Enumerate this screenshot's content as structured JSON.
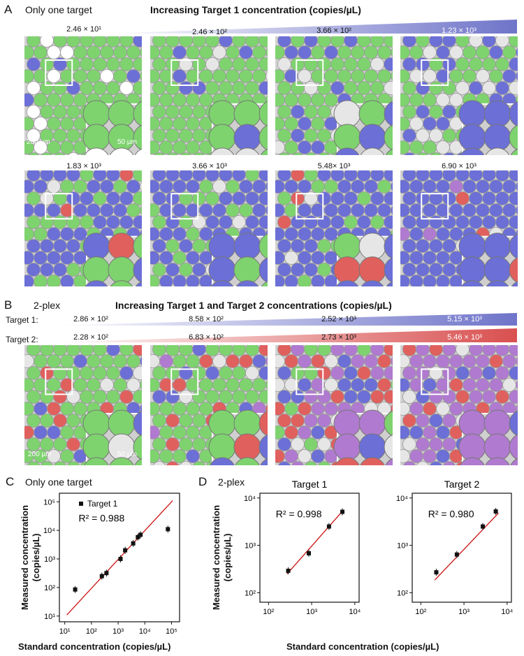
{
  "panelA": {
    "letter": "A",
    "subtitle": "Only one target",
    "title": "Increasing Target 1 concentration (copies/µL)",
    "row1": [
      "2.46 × 10¹",
      "2.46 × 10²",
      "3.66 × 10²",
      "1.23 × 10³"
    ],
    "row2": [
      "1.83 × 10³",
      "3.66 × 10³",
      "5.48× 10³",
      "6.90 × 10³"
    ],
    "scale_big": "200 µm",
    "scale_small": "50 µm"
  },
  "panelB": {
    "letter": "B",
    "subtitle": "2-plex",
    "title": "Increasing Target 1 and Target 2 concentrations (copies/µL)",
    "t1_label": "Target 1:",
    "t2_label": "Target 2:",
    "t1_values": [
      "2.86 × 10²",
      "8.58 × 10²",
      "2.52 × 10³",
      "5.15 × 10³"
    ],
    "t2_values": [
      "2.28 × 10²",
      "6.83 × 10²",
      "2.73 × 10³",
      "5.46 × 10³"
    ],
    "scale_big": "200 µm",
    "scale_small": "50 µm"
  },
  "panelC": {
    "letter": "C",
    "subtitle": "Only one target"
  },
  "panelD": {
    "letter": "D",
    "subtitle": "2-plex"
  },
  "colors": {
    "green": "#7ed36e",
    "blue": "#6b6fd6",
    "red": "#e0605e",
    "purple": "#b07ad0",
    "fit": "#cc1111"
  },
  "chart_data": [
    {
      "type": "scatter",
      "title": "",
      "legend": "Target 1",
      "r2": "R² = 0.988",
      "xlabel": "Standard concentration (copies/µL)",
      "ylabel": "Measured concentration (copies/µL)",
      "xlim_log10": [
        0.8,
        5.3
      ],
      "ylim_log10": [
        0.8,
        5.3
      ],
      "xticks": [
        "10¹",
        "10²",
        "10³",
        "10⁴",
        "10⁵"
      ],
      "yticks": [
        "10¹",
        "10²",
        "10³",
        "10⁴",
        "10⁵"
      ],
      "x": [
        24.6,
        246,
        366,
        1230,
        1830,
        3660,
        5480,
        6900,
        73000
      ],
      "y": [
        85,
        250,
        320,
        1000,
        2000,
        3500,
        5800,
        7000,
        11000
      ],
      "fit": [
        [
          12,
          11
        ],
        [
          110000,
          110000
        ]
      ]
    },
    {
      "type": "scatter",
      "title": "Target 1",
      "r2": "R² = 0.998",
      "xlim_log10": [
        1.8,
        4.1
      ],
      "ylim_log10": [
        1.8,
        4.1
      ],
      "xticks": [
        "10²",
        "10³",
        "10⁴"
      ],
      "yticks": [
        "10²",
        "10³",
        "10⁴"
      ],
      "x": [
        286,
        858,
        2520,
        5150
      ],
      "y": [
        290,
        680,
        2500,
        5100
      ],
      "fit": [
        [
          270,
          250
        ],
        [
          5500,
          5600
        ]
      ]
    },
    {
      "type": "scatter",
      "title": "Target 2",
      "r2": "R² = 0.980",
      "xlim_log10": [
        1.8,
        4.1
      ],
      "ylim_log10": [
        1.8,
        4.1
      ],
      "xticks": [
        "10²",
        "10³",
        "10⁴"
      ],
      "yticks": [
        "10²",
        "10³",
        "10⁴"
      ],
      "x": [
        228,
        683,
        2730,
        5460
      ],
      "y": [
        270,
        640,
        2500,
        5200
      ],
      "fit": [
        [
          210,
          185
        ],
        [
          6300,
          4800
        ]
      ]
    }
  ],
  "axis_labels": {
    "x": "Standard concentration (copies/µL)",
    "y_line1": "Measured concentration",
    "y_line2": "(copies/µL)"
  }
}
